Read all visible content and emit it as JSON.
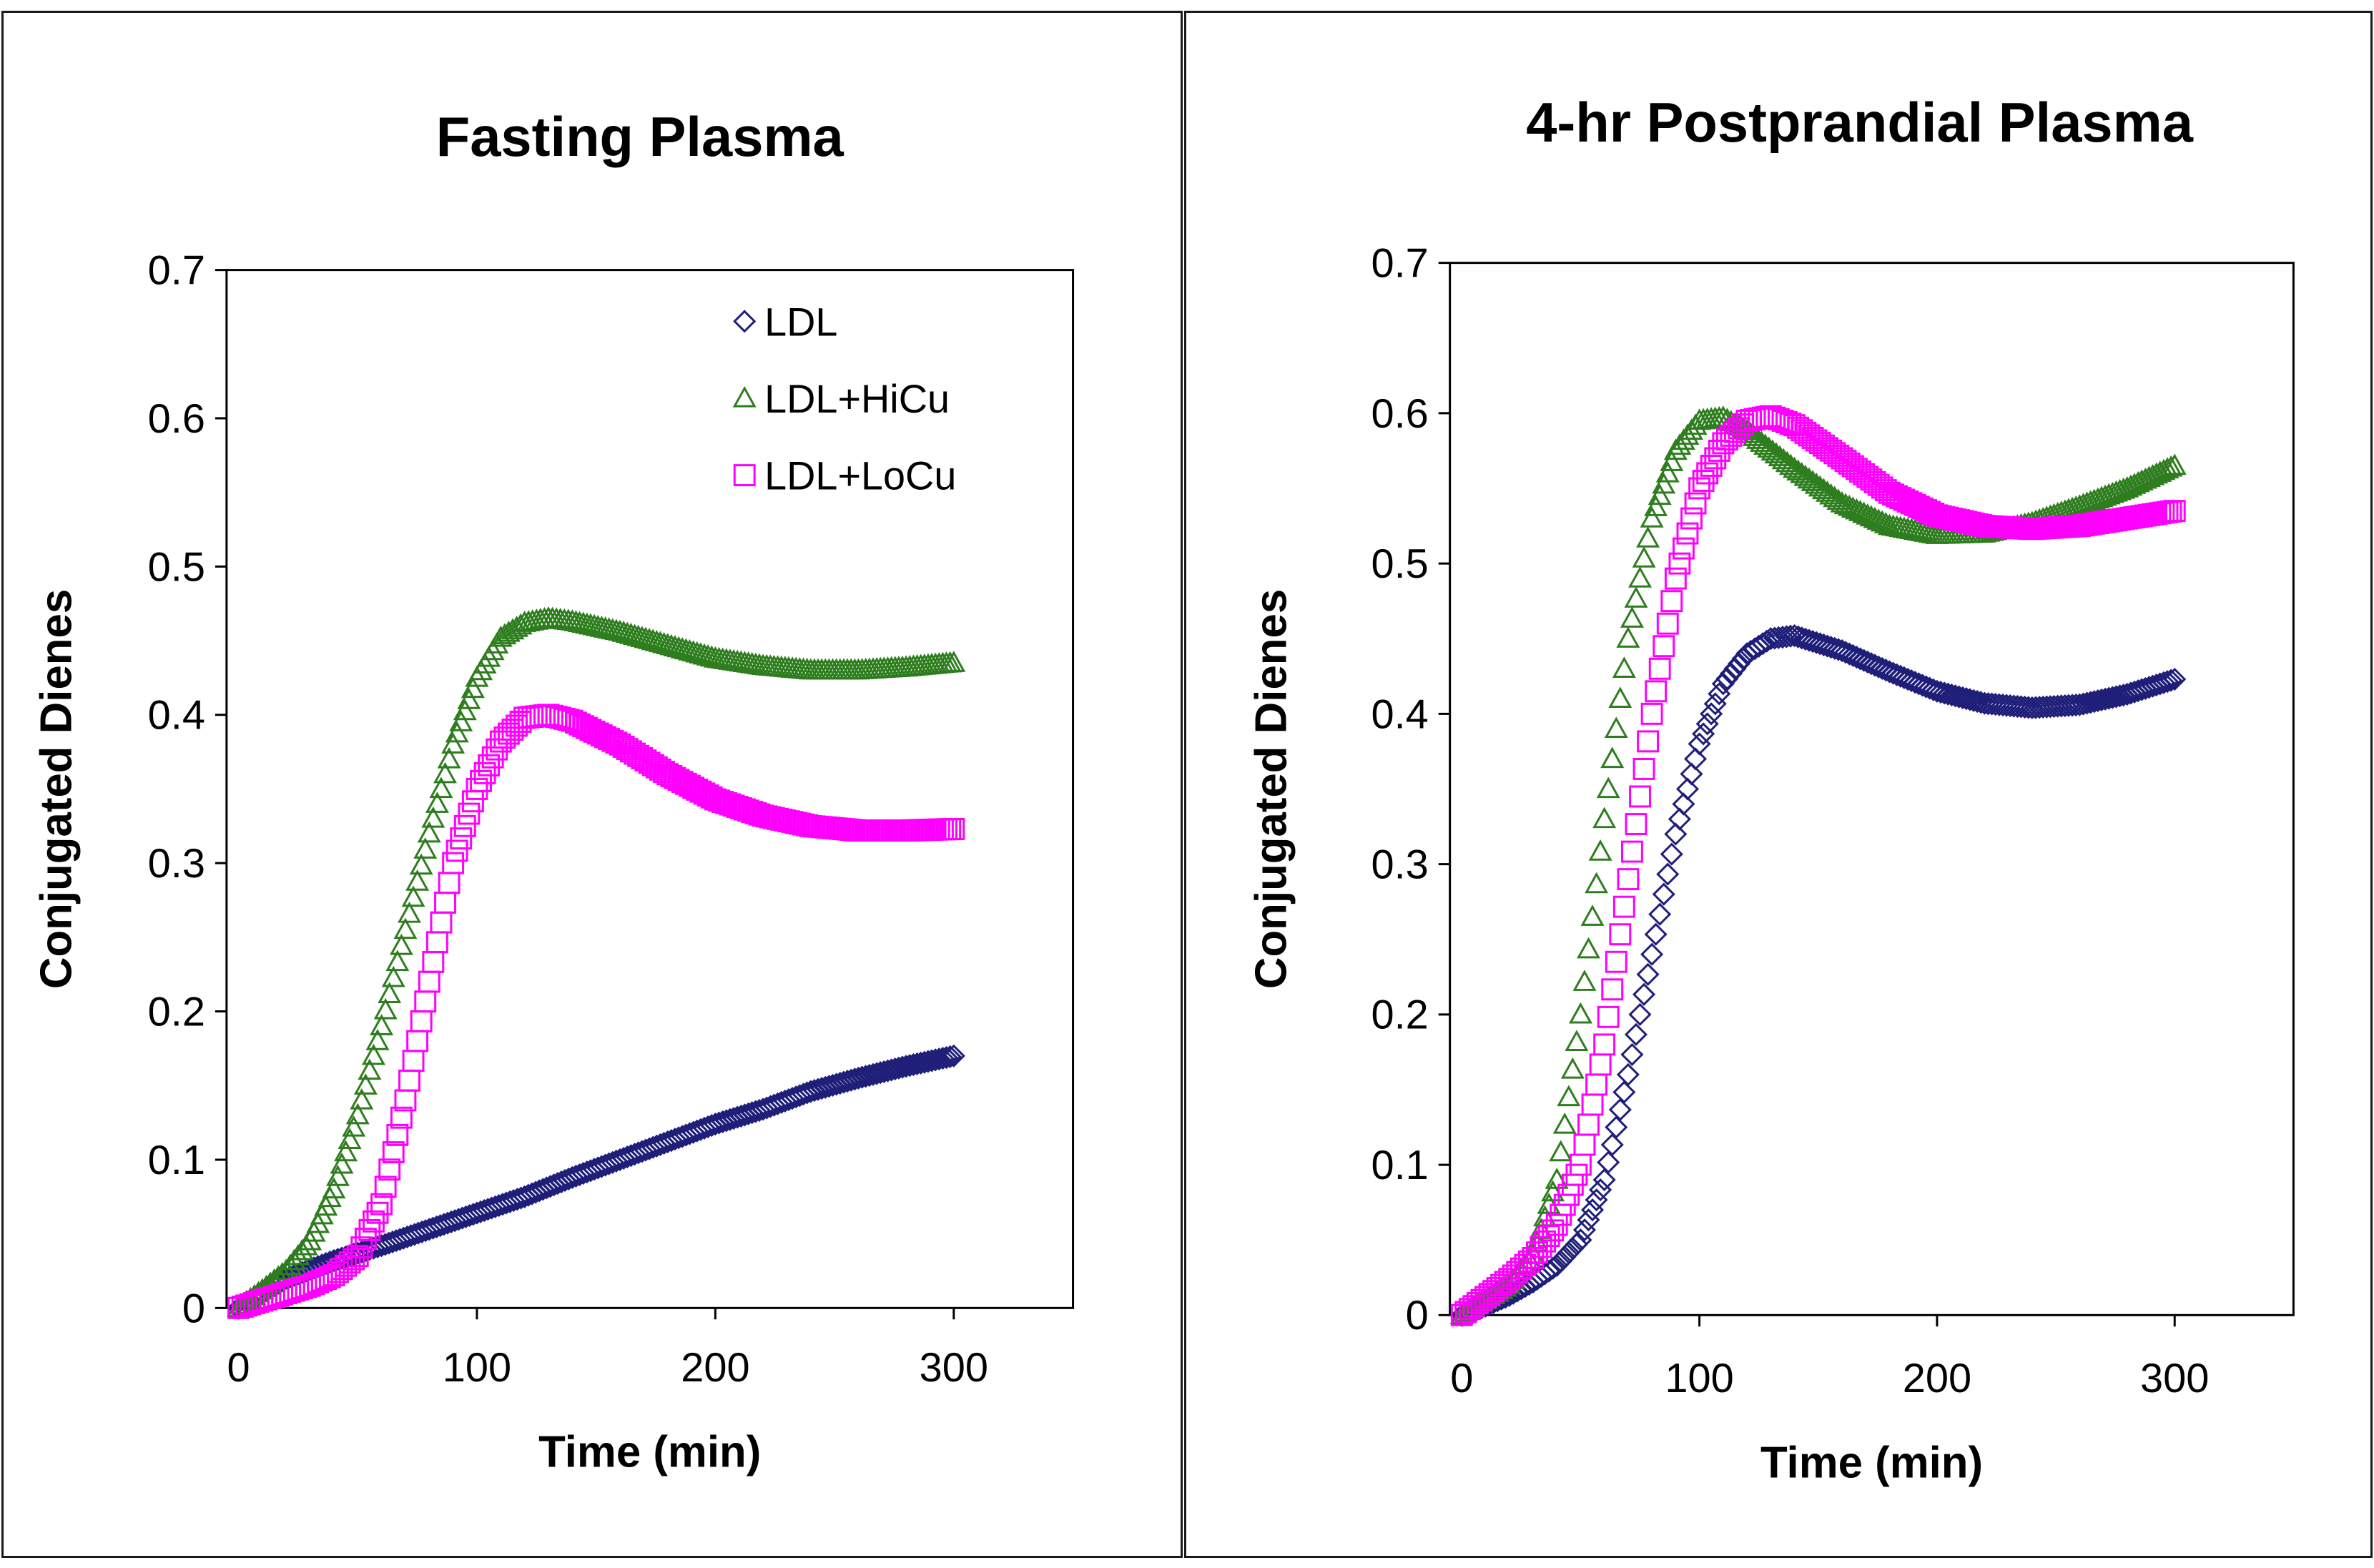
{
  "colors": {
    "LDL": "#1f1f7a",
    "LDL+HiCu": "#2e7d1e",
    "LDL+LoCu": "#ff00ff"
  },
  "chart_data": [
    {
      "type": "scatter",
      "title": "Fasting Plasma",
      "xlabel": "Time (min)",
      "ylabel": "Conjugated Dienes",
      "xlim": [
        -5,
        350
      ],
      "ylim": [
        0,
        0.7
      ],
      "x_ticks": [
        "0",
        "100",
        "200",
        "300"
      ],
      "y_ticks": [
        "0",
        "0.1",
        "0.2",
        "0.3",
        "0.4",
        "0.5",
        "0.6",
        "0.7"
      ],
      "legend": {
        "position": "top-right",
        "entries": [
          "LDL",
          "LDL+HiCu",
          "LDL+LoCu"
        ]
      },
      "series": [
        {
          "name": "LDL",
          "marker": "diamond",
          "points": [
            [
              0,
              0.0
            ],
            [
              10,
              0.01
            ],
            [
              20,
              0.02
            ],
            [
              30,
              0.026
            ],
            [
              40,
              0.032
            ],
            [
              50,
              0.037
            ],
            [
              60,
              0.042
            ],
            [
              80,
              0.053
            ],
            [
              100,
              0.064
            ],
            [
              120,
              0.075
            ],
            [
              140,
              0.088
            ],
            [
              160,
              0.1
            ],
            [
              180,
              0.112
            ],
            [
              200,
              0.124
            ],
            [
              220,
              0.134
            ],
            [
              240,
              0.146
            ],
            [
              260,
              0.155
            ],
            [
              280,
              0.163
            ],
            [
              300,
              0.17
            ]
          ]
        },
        {
          "name": "LDL+HiCu",
          "marker": "triangle",
          "points": [
            [
              0,
              0.0
            ],
            [
              10,
              0.012
            ],
            [
              20,
              0.025
            ],
            [
              30,
              0.045
            ],
            [
              40,
              0.08
            ],
            [
              50,
              0.13
            ],
            [
              60,
              0.19
            ],
            [
              70,
              0.255
            ],
            [
              80,
              0.32
            ],
            [
              90,
              0.38
            ],
            [
              100,
              0.425
            ],
            [
              110,
              0.452
            ],
            [
              120,
              0.462
            ],
            [
              130,
              0.465
            ],
            [
              140,
              0.463
            ],
            [
              160,
              0.456
            ],
            [
              180,
              0.447
            ],
            [
              200,
              0.438
            ],
            [
              220,
              0.433
            ],
            [
              240,
              0.43
            ],
            [
              260,
              0.43
            ],
            [
              280,
              0.432
            ],
            [
              300,
              0.435
            ]
          ]
        },
        {
          "name": "LDL+LoCu",
          "marker": "square",
          "points": [
            [
              0,
              0.0
            ],
            [
              10,
              0.005
            ],
            [
              20,
              0.01
            ],
            [
              30,
              0.015
            ],
            [
              40,
              0.022
            ],
            [
              50,
              0.035
            ],
            [
              60,
              0.07
            ],
            [
              70,
              0.14
            ],
            [
              80,
              0.22
            ],
            [
              90,
              0.3
            ],
            [
              100,
              0.35
            ],
            [
              110,
              0.382
            ],
            [
              120,
              0.398
            ],
            [
              130,
              0.4
            ],
            [
              140,
              0.396
            ],
            [
              160,
              0.38
            ],
            [
              180,
              0.36
            ],
            [
              200,
              0.343
            ],
            [
              220,
              0.332
            ],
            [
              240,
              0.325
            ],
            [
              260,
              0.322
            ],
            [
              280,
              0.322
            ],
            [
              300,
              0.323
            ]
          ]
        }
      ]
    },
    {
      "type": "scatter",
      "title": "4-hr Postprandial Plasma",
      "xlabel": "Time (min)",
      "ylabel": "Conjugated Dienes",
      "xlim": [
        -5,
        350
      ],
      "ylim": [
        0,
        0.7
      ],
      "x_ticks": [
        "0",
        "100",
        "200",
        "300"
      ],
      "y_ticks": [
        "0",
        "0.1",
        "0.2",
        "0.3",
        "0.4",
        "0.5",
        "0.6",
        "0.7"
      ],
      "series": [
        {
          "name": "LDL",
          "marker": "diamond",
          "points": [
            [
              0,
              0.0
            ],
            [
              10,
              0.006
            ],
            [
              20,
              0.013
            ],
            [
              30,
              0.022
            ],
            [
              40,
              0.033
            ],
            [
              50,
              0.05
            ],
            [
              60,
              0.09
            ],
            [
              70,
              0.16
            ],
            [
              80,
              0.24
            ],
            [
              90,
              0.32
            ],
            [
              100,
              0.38
            ],
            [
              110,
              0.42
            ],
            [
              120,
              0.44
            ],
            [
              130,
              0.45
            ],
            [
              140,
              0.452
            ],
            [
              160,
              0.442
            ],
            [
              180,
              0.428
            ],
            [
              200,
              0.415
            ],
            [
              220,
              0.407
            ],
            [
              240,
              0.404
            ],
            [
              260,
              0.406
            ],
            [
              280,
              0.413
            ],
            [
              300,
              0.423
            ]
          ]
        },
        {
          "name": "LDL+HiCu",
          "marker": "triangle",
          "points": [
            [
              0,
              0.0
            ],
            [
              10,
              0.01
            ],
            [
              20,
              0.02
            ],
            [
              30,
              0.04
            ],
            [
              40,
              0.09
            ],
            [
              50,
              0.2
            ],
            [
              60,
              0.33
            ],
            [
              70,
              0.45
            ],
            [
              80,
              0.53
            ],
            [
              90,
              0.575
            ],
            [
              100,
              0.595
            ],
            [
              110,
              0.597
            ],
            [
              120,
              0.588
            ],
            [
              140,
              0.563
            ],
            [
              160,
              0.54
            ],
            [
              180,
              0.525
            ],
            [
              200,
              0.519
            ],
            [
              220,
              0.52
            ],
            [
              240,
              0.527
            ],
            [
              260,
              0.538
            ],
            [
              280,
              0.55
            ],
            [
              300,
              0.565
            ]
          ]
        },
        {
          "name": "LDL+LoCu",
          "marker": "square",
          "points": [
            [
              0,
              0.0
            ],
            [
              10,
              0.012
            ],
            [
              20,
              0.024
            ],
            [
              30,
              0.038
            ],
            [
              40,
              0.06
            ],
            [
              50,
              0.1
            ],
            [
              60,
              0.18
            ],
            [
              70,
              0.29
            ],
            [
              80,
              0.4
            ],
            [
              90,
              0.49
            ],
            [
              100,
              0.55
            ],
            [
              110,
              0.58
            ],
            [
              120,
              0.595
            ],
            [
              130,
              0.598
            ],
            [
              140,
              0.592
            ],
            [
              160,
              0.57
            ],
            [
              180,
              0.547
            ],
            [
              200,
              0.532
            ],
            [
              220,
              0.525
            ],
            [
              240,
              0.523
            ],
            [
              260,
              0.525
            ],
            [
              280,
              0.53
            ],
            [
              300,
              0.535
            ]
          ]
        }
      ]
    }
  ]
}
